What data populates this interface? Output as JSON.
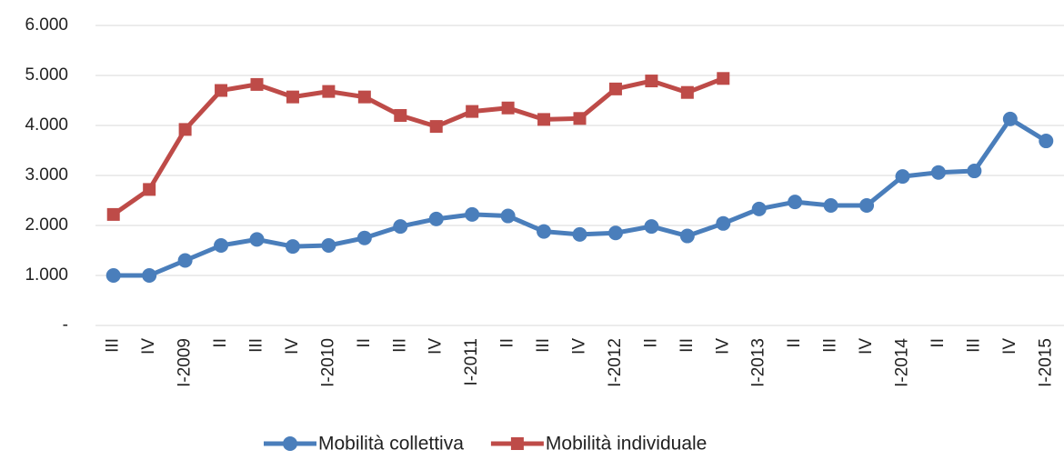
{
  "chart_data": {
    "type": "line",
    "categories": [
      "III",
      "IV",
      "I-2009",
      "II",
      "III",
      "IV",
      "I-2010",
      "II",
      "III",
      "IV",
      "I-2011",
      "II",
      "III",
      "IV",
      "I-2012",
      "II",
      "III",
      "IV",
      "I-2013",
      "II",
      "III",
      "IV",
      "I-2014",
      "II",
      "III",
      "IV",
      "I-2015"
    ],
    "series": [
      {
        "name": "Mobilità collettiva",
        "color": "#4a7ebb",
        "marker": "circle",
        "values": [
          1000,
          1000,
          1300,
          1600,
          1720,
          1580,
          1600,
          1750,
          1980,
          2130,
          2220,
          2190,
          1880,
          1820,
          1850,
          1980,
          1790,
          2040,
          2330,
          2470,
          2400,
          2400,
          2980,
          3060,
          3090,
          4130,
          3690
        ]
      },
      {
        "name": "Mobilità individuale",
        "color": "#be4b48",
        "marker": "square",
        "values": [
          2220,
          2720,
          3920,
          4700,
          4820,
          4570,
          4680,
          4570,
          4200,
          3980,
          4280,
          4350,
          4120,
          4140,
          4730,
          4890,
          4660,
          4940,
          null,
          null,
          null,
          null,
          null,
          null,
          null,
          null,
          null
        ]
      }
    ],
    "ylim": [
      0,
      6000
    ],
    "yticks": [
      {
        "value": 0,
        "label": "-"
      },
      {
        "value": 1000,
        "label": "1.000"
      },
      {
        "value": 2000,
        "label": "2.000"
      },
      {
        "value": 3000,
        "label": "3.000"
      },
      {
        "value": 4000,
        "label": "4.000"
      },
      {
        "value": 5000,
        "label": "5.000"
      },
      {
        "value": 6000,
        "label": "6.000"
      }
    ],
    "grid": true,
    "legend": "bottom"
  }
}
